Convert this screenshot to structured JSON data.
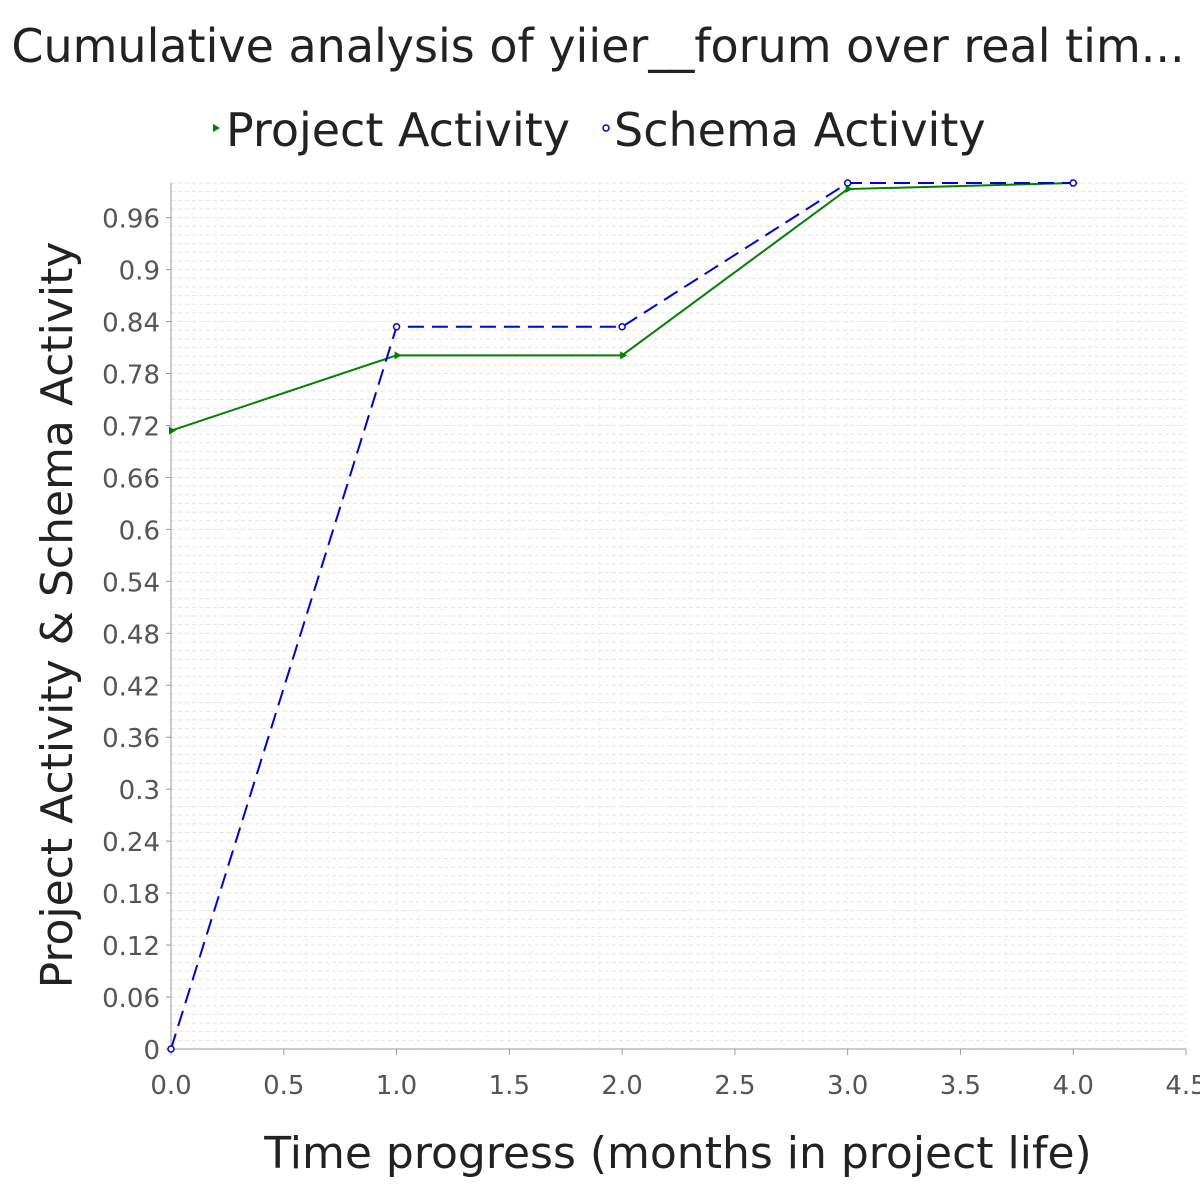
{
  "chart_data": {
    "type": "line",
    "title": "Cumulative analysis of yiier__forum over real tim...",
    "xlabel": "Time progress (months in project life)",
    "ylabel": "Project Activity & Schema Activity",
    "xlim": [
      0,
      4.5
    ],
    "ylim": [
      0,
      1.0
    ],
    "x_ticks": [
      "0.0",
      "0.5",
      "1.0",
      "1.5",
      "2.0",
      "2.5",
      "3.0",
      "3.5",
      "4.0",
      "4.5"
    ],
    "y_ticks": [
      "0",
      "0.06",
      "0.12",
      "0.18",
      "0.24",
      "0.3",
      "0.36",
      "0.42",
      "0.48",
      "0.54",
      "0.6",
      "0.66",
      "0.72",
      "0.78",
      "0.84",
      "0.9",
      "0.96"
    ],
    "grid": true,
    "legend_position": "top",
    "series": [
      {
        "name": "Project Activity",
        "color": "#008000",
        "line_style": "solid",
        "marker": "triangle",
        "x": [
          0,
          1,
          2,
          3,
          4
        ],
        "y": [
          0.714,
          0.801,
          0.801,
          0.993,
          1.0
        ]
      },
      {
        "name": "Schema Activity",
        "color": "#0000dd",
        "line_style": "dashed",
        "marker": "circle",
        "x": [
          0,
          1,
          2,
          3,
          4
        ],
        "y": [
          0.0,
          0.834,
          0.834,
          1.0,
          1.0
        ]
      }
    ]
  }
}
